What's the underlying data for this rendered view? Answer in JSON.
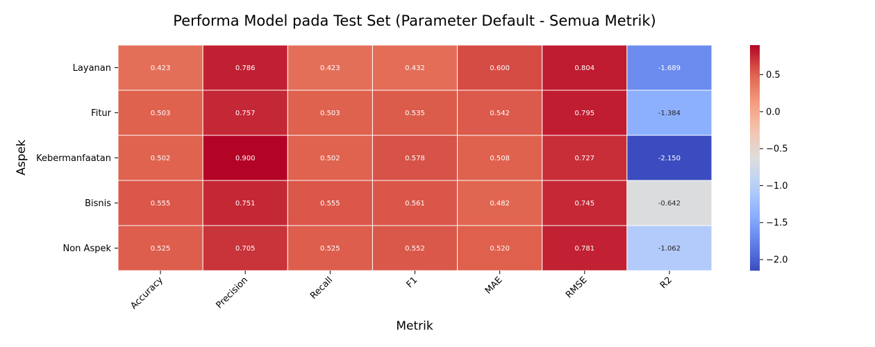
{
  "chart_data": {
    "type": "heatmap",
    "title": "Performa Model pada Test Set (Parameter Default - Semua Metrik)",
    "xlabel": "Metrik",
    "ylabel": "Aspek",
    "x_categories": [
      "Accuracy",
      "Precision",
      "Recall",
      "F1",
      "MAE",
      "RMSE",
      "R2"
    ],
    "y_categories": [
      "Layanan",
      "Fitur",
      "Kebermanfaatan",
      "Bisnis",
      "Non Aspek"
    ],
    "values": [
      [
        0.423,
        0.786,
        0.423,
        0.432,
        0.6,
        0.804,
        -1.689
      ],
      [
        0.503,
        0.757,
        0.503,
        0.535,
        0.542,
        0.795,
        -1.384
      ],
      [
        0.502,
        0.9,
        0.502,
        0.578,
        0.508,
        0.727,
        -2.15
      ],
      [
        0.555,
        0.751,
        0.555,
        0.561,
        0.482,
        0.745,
        -0.642
      ],
      [
        0.525,
        0.705,
        0.525,
        0.552,
        0.52,
        0.781,
        -1.062
      ]
    ],
    "value_labels": [
      [
        "0.423",
        "0.786",
        "0.423",
        "0.432",
        "0.600",
        "0.804",
        "-1.689"
      ],
      [
        "0.503",
        "0.757",
        "0.503",
        "0.535",
        "0.542",
        "0.795",
        "-1.384"
      ],
      [
        "0.502",
        "0.900",
        "0.502",
        "0.578",
        "0.508",
        "0.727",
        "-2.150"
      ],
      [
        "0.555",
        "0.751",
        "0.555",
        "0.561",
        "0.482",
        "0.745",
        "-0.642"
      ],
      [
        "0.525",
        "0.705",
        "0.525",
        "0.552",
        "0.520",
        "0.781",
        "-1.062"
      ]
    ],
    "colormap": "coolwarm",
    "vmin": -2.15,
    "vmax": 0.9,
    "colorbar": {
      "ticks": [
        0.5,
        0.0,
        -0.5,
        -1.0,
        -1.5,
        -2.0
      ],
      "tick_labels": [
        "0.5",
        "0.0",
        "−0.5",
        "−1.0",
        "−1.5",
        "−2.0"
      ]
    },
    "grid": false
  }
}
